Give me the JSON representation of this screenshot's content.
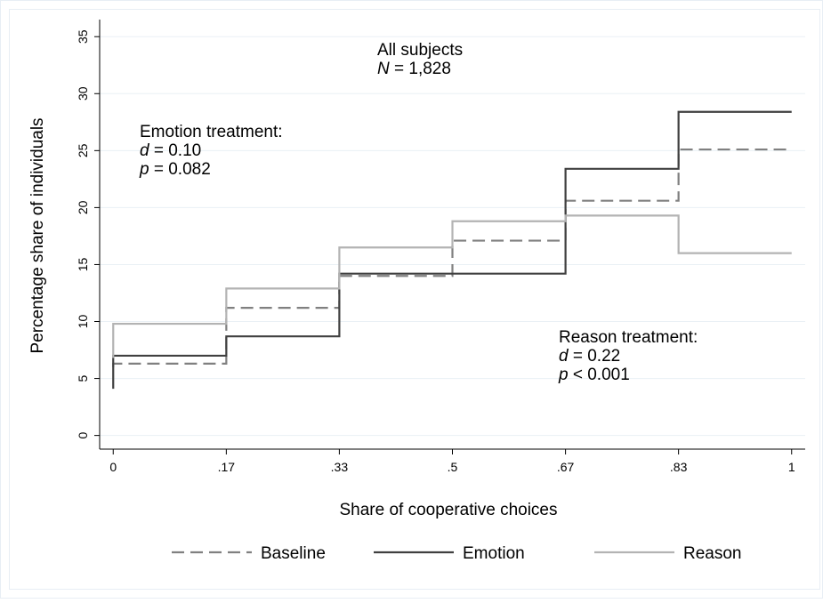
{
  "chart_data": {
    "type": "step",
    "x_label": "Share of cooperative choices",
    "y_label": "Percentage share of individuals",
    "x": [
      0,
      0.1667,
      0.3333,
      0.5,
      0.6667,
      0.8333,
      1
    ],
    "series": [
      {
        "name": "Baseline",
        "color": "#808080",
        "dashed": true,
        "values": [
          6.0,
          6.3,
          11.2,
          14.0,
          17.1,
          20.6,
          25.1
        ]
      },
      {
        "name": "Emotion",
        "color": "#404040",
        "dashed": false,
        "values": [
          4.1,
          7.0,
          8.7,
          14.2,
          14.2,
          23.4,
          28.4
        ]
      },
      {
        "name": "Reason",
        "color": "#b3b3b3",
        "dashed": false,
        "values": [
          6.8,
          9.8,
          12.9,
          16.5,
          18.8,
          19.3,
          16.0
        ]
      }
    ],
    "xlim": [
      -0.02,
      1.02
    ],
    "ylim": [
      -1.2,
      36.5
    ],
    "xticks": [
      0,
      {
        "value": 0.1667,
        "label": ".17"
      },
      {
        "value": 0.3333,
        "label": ".33"
      },
      {
        "value": 0.5,
        "label": ".5"
      },
      {
        "value": 0.6667,
        "label": ".67"
      },
      {
        "value": 0.8333,
        "label": ".83"
      },
      1
    ],
    "yticks": [
      0,
      5,
      10,
      15,
      20,
      25,
      30,
      35
    ],
    "grid": true,
    "legend": "bottom",
    "annotations": [
      {
        "lines": [
          {
            "italic": "",
            "text": "All subjects"
          },
          {
            "italic": "N",
            "text": " = 1,828"
          }
        ]
      },
      {
        "lines": [
          {
            "italic": "",
            "text": "Emotion treatment:"
          },
          {
            "italic": "d",
            "text": " = 0.10"
          },
          {
            "italic": "p",
            "text": " = 0.082"
          }
        ]
      },
      {
        "lines": [
          {
            "italic": "",
            "text": "Reason treatment:"
          },
          {
            "italic": "d",
            "text": " = 0.22"
          },
          {
            "italic": "p",
            "text": " < 0.001"
          }
        ]
      }
    ]
  }
}
